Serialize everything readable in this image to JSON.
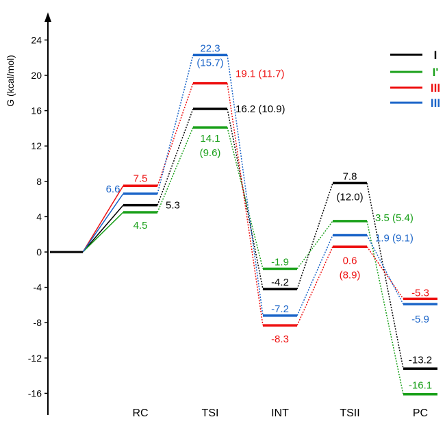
{
  "chart_data": {
    "type": "line",
    "ylabel": "G (kcal/mol)",
    "ylim": [
      -20,
      28
    ],
    "yticks": [
      "24",
      "20",
      "16",
      "12",
      "8",
      "4",
      "0",
      "-4",
      "-8",
      "-12",
      "-16"
    ],
    "ytick_values": [
      24,
      20,
      16,
      12,
      8,
      4,
      0,
      -4,
      -8,
      -12,
      -16
    ],
    "categories": [
      "RC",
      "TSI",
      "INT",
      "TSII",
      "PC"
    ],
    "start_level": 0,
    "legend_position": "top-right",
    "series": [
      {
        "name": "I",
        "color": "#000000",
        "values": [
          5.3,
          16.2,
          -4.2,
          7.8,
          -13.2
        ],
        "labels": [
          "5.3",
          "16.2 (10.9)",
          "-4.2",
          "7.8",
          "-13.2"
        ],
        "labels2": [
          "",
          "",
          "",
          "(12.0)",
          ""
        ]
      },
      {
        "name": "I'",
        "color": "#1aa01a",
        "values": [
          4.5,
          14.1,
          -1.9,
          3.5,
          -16.1
        ],
        "labels": [
          "4.5",
          "14.1",
          "-1.9",
          "3.5 (5.4)",
          "-16.1"
        ],
        "labels2": [
          "",
          "(9.6)",
          "",
          "",
          ""
        ]
      },
      {
        "name": "III",
        "color": "#ee1111",
        "values": [
          7.5,
          19.1,
          -8.3,
          0.6,
          -5.3
        ],
        "labels": [
          "7.5",
          "19.1 (11.7)",
          "-8.3",
          "0.6",
          "-5.3"
        ],
        "labels2": [
          "",
          "",
          "",
          "(8.9)",
          ""
        ]
      },
      {
        "name": "III",
        "color": "#1a64c8",
        "values": [
          6.6,
          22.3,
          -7.2,
          1.9,
          -5.9
        ],
        "labels": [
          "6.6",
          "22.3",
          "-7.2",
          "1.9 (9.1)",
          "-5.9"
        ],
        "labels2": [
          "",
          "(15.7)",
          "",
          "",
          ""
        ]
      }
    ]
  }
}
